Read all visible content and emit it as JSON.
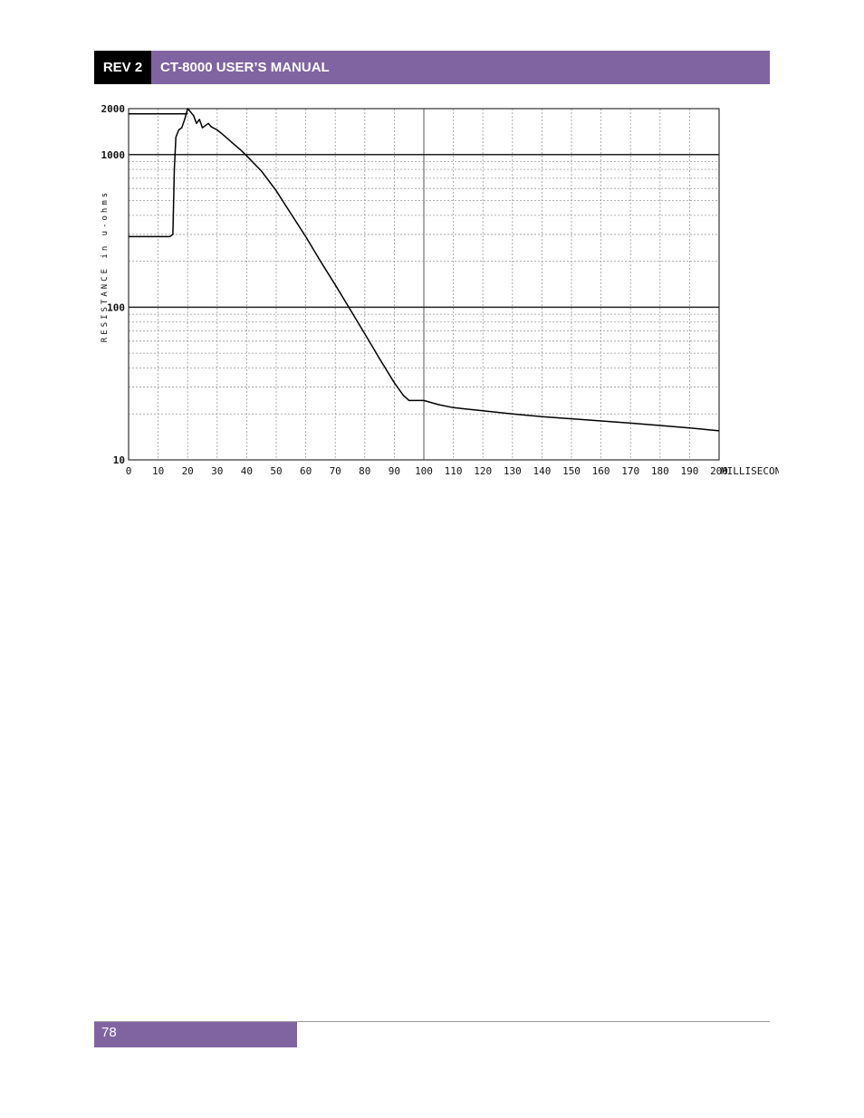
{
  "header": {
    "rev": "REV 2",
    "title": "CT-8000 USER’S MANUAL"
  },
  "footer": {
    "page": "78"
  },
  "chart_data": {
    "type": "line",
    "xlabel": "MILLISECONDS",
    "ylabel": "RESISTANCE in u-ohms",
    "xlim": [
      0,
      200
    ],
    "ylim": [
      10,
      2000
    ],
    "yscale": "log",
    "grid": true,
    "x_ticks": [
      "0",
      "10",
      "20",
      "30",
      "40",
      "50",
      "60",
      "70",
      "80",
      "90",
      "100",
      "110",
      "120",
      "130",
      "140",
      "150",
      "160",
      "170",
      "180",
      "190",
      "200"
    ],
    "y_ticks": [
      "10",
      "100",
      "1000",
      "2000"
    ],
    "series": [
      {
        "x": [
          0,
          14,
          15,
          15.5,
          16,
          17,
          18,
          19,
          20,
          21,
          22,
          23,
          24,
          25,
          26,
          27,
          28,
          30,
          32,
          35,
          38,
          40,
          45,
          50,
          55,
          60,
          65,
          70,
          75,
          80,
          85,
          90,
          93,
          95,
          97,
          100,
          105,
          110,
          120,
          130,
          140,
          150,
          160,
          170,
          180,
          190,
          200
        ],
        "y": [
          290,
          290,
          300,
          800,
          1300,
          1450,
          1500,
          1700,
          2000,
          1900,
          1800,
          1600,
          1700,
          1500,
          1550,
          1600,
          1520,
          1450,
          1350,
          1200,
          1070,
          980,
          780,
          580,
          410,
          290,
          200,
          140,
          97,
          67,
          46,
          32,
          26.5,
          24.5,
          24.5,
          24.5,
          23,
          22,
          21,
          20,
          19.2,
          18.6,
          18,
          17.4,
          16.8,
          16.2,
          15.5
        ]
      },
      {
        "x": [
          0,
          20
        ],
        "y": [
          1850,
          1850
        ]
      }
    ]
  }
}
